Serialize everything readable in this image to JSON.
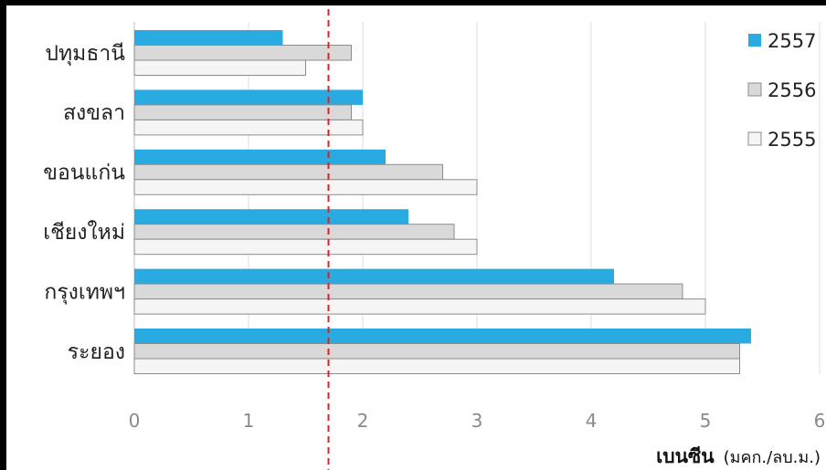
{
  "chart_data": {
    "type": "bar",
    "orientation": "horizontal",
    "categories": [
      "ปทุมธานี",
      "สงขลา",
      "ขอนแก่น",
      "เชียงใหม่",
      "กรุงเทพฯ",
      "ระยอง"
    ],
    "series": [
      {
        "name": "2557",
        "color": "#29abe2",
        "values": [
          1.3,
          2.0,
          2.2,
          2.4,
          4.2,
          5.4
        ]
      },
      {
        "name": "2556",
        "color": "#d9d9d9",
        "values": [
          1.9,
          1.9,
          2.7,
          2.8,
          4.8,
          5.3
        ]
      },
      {
        "name": "2555",
        "color": "#f5f5f5",
        "values": [
          1.5,
          2.0,
          3.0,
          3.0,
          5.0,
          5.3
        ]
      }
    ],
    "xlim": [
      0,
      6
    ],
    "x_ticks": [
      "0",
      "1",
      "2",
      "3",
      "4",
      "5",
      "6"
    ],
    "xlabel_bold": "เบนซีน",
    "xlabel_unit": "(มคก./ลบ.ม.)",
    "reference_line": {
      "value": 1.7,
      "style": "dashed",
      "color": "#e02020"
    },
    "legend_position": "right",
    "grid": "vertical"
  }
}
